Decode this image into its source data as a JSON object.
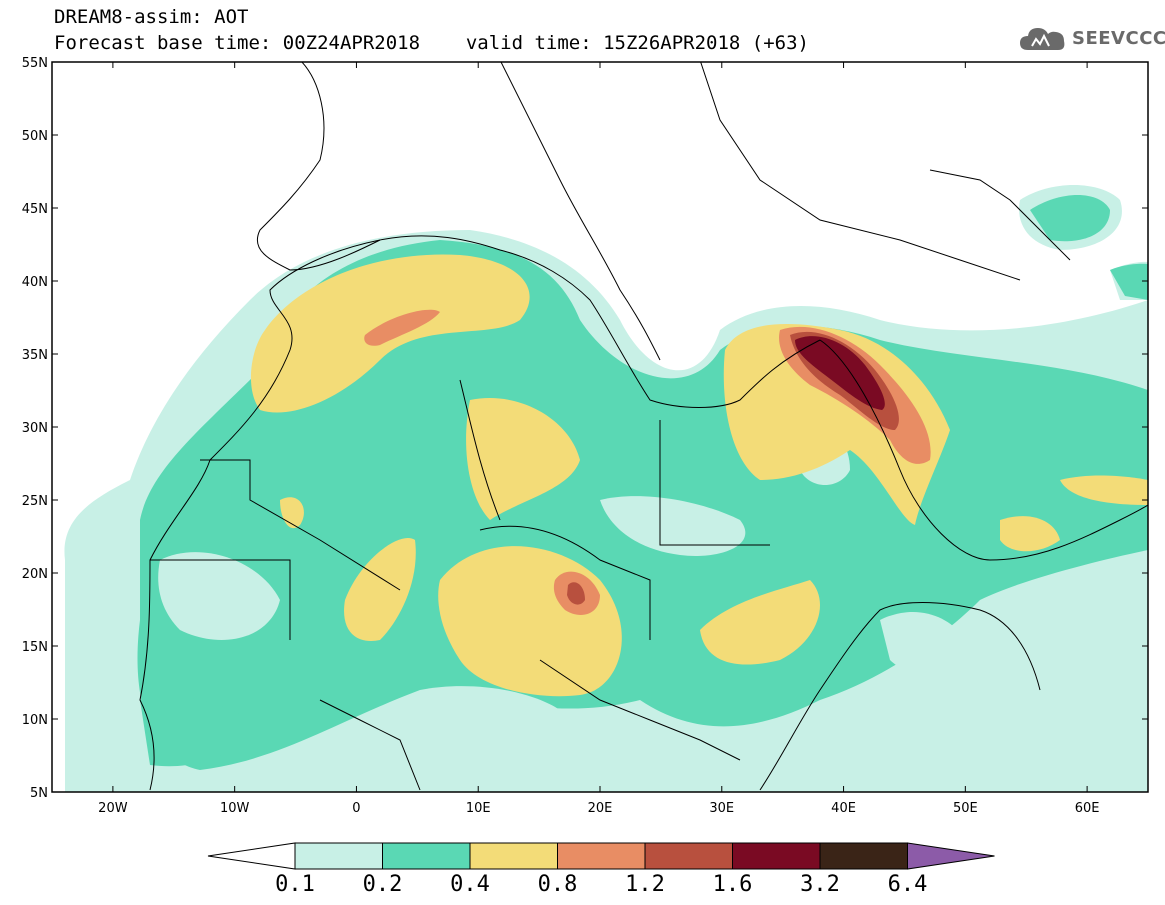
{
  "header": {
    "title": "DREAM8-assim: AOT",
    "base_time_label": "Forecast base time: 00Z24APR2018",
    "valid_time_label": "valid time: 15Z26APR2018 (+63)"
  },
  "logo": {
    "text": "SEEVCCC",
    "icon": "cloud-icon"
  },
  "map": {
    "lat_labels": [
      "55N",
      "50N",
      "45N",
      "40N",
      "35N",
      "30N",
      "25N",
      "20N",
      "15N",
      "10N",
      "5N"
    ],
    "lon_labels": [
      "20W",
      "10W",
      "0",
      "10E",
      "20E",
      "30E",
      "40E",
      "50E",
      "60E"
    ],
    "lat_range": [
      5,
      55
    ],
    "lon_range": [
      -25,
      65
    ]
  },
  "colorbar": {
    "levels": [
      "0.1",
      "0.2",
      "0.4",
      "0.8",
      "1.2",
      "1.6",
      "3.2",
      "6.4"
    ],
    "colors": [
      "#c8f0e6",
      "#5ad8b4",
      "#f3dc78",
      "#e88d64",
      "#b8503e",
      "#7a0a23",
      "#3a2417",
      "#8c5ba8"
    ],
    "under_color": "#ffffff"
  },
  "colors": {
    "c1": "#c8f0e6",
    "c2": "#5ad8b4",
    "c3": "#f3dc78",
    "c4": "#e88d64",
    "c5": "#b8503e",
    "c6": "#7a0a23"
  }
}
